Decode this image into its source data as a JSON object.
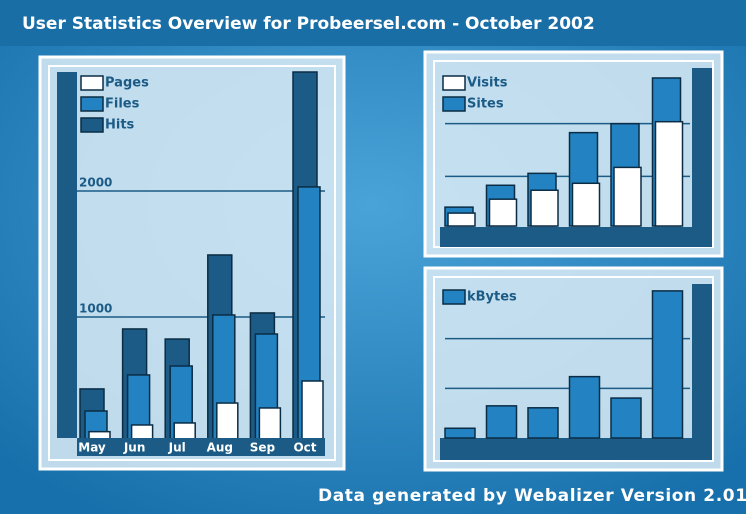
{
  "header": {
    "title": "User Statistics Overview for Probeersel.com - October 2002"
  },
  "footer": {
    "text": "Data generated by Webalizer Version 2.01"
  },
  "chart_data": [
    {
      "type": "bar",
      "categories": [
        "May",
        "Jun",
        "Jul",
        "Aug",
        "Sep",
        "Oct"
      ],
      "series": [
        {
          "name": "Pages",
          "color": "#ffffff",
          "values": [
            90,
            143,
            159,
            317,
            278,
            492
          ]
        },
        {
          "name": "Files",
          "color": "#2383c2",
          "values": [
            254,
            540,
            611,
            1016,
            865,
            2032
          ]
        },
        {
          "name": "Hits",
          "color": "#1b5b85",
          "values": [
            429,
            905,
            825,
            1492,
            1032,
            2944
          ]
        }
      ],
      "ylim": [
        0,
        2944
      ],
      "yticks": [
        1000,
        2000
      ],
      "grid": true
    },
    {
      "type": "bar",
      "series": [
        {
          "name": "Visits",
          "color": "#ffffff",
          "values": [
            13,
            27,
            36,
            43,
            59,
            105
          ]
        },
        {
          "name": "Sites",
          "color": "#2383c2",
          "values": [
            19,
            41,
            53,
            94,
            103,
            149
          ]
        }
      ],
      "ylim": [
        0,
        150
      ],
      "ygrid": [
        50,
        103
      ],
      "grid": true
    },
    {
      "type": "bar",
      "series": [
        {
          "name": "kBytes",
          "color": "#2383c2",
          "values": [
            10,
            33,
            31,
            63,
            41,
            151
          ]
        }
      ],
      "ylim": [
        0,
        155
      ],
      "ygrid": [
        51,
        102
      ],
      "grid": true
    }
  ]
}
